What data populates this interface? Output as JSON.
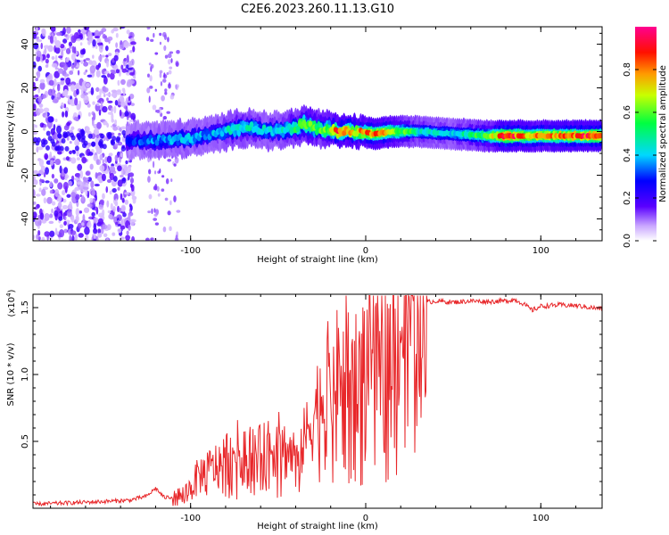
{
  "title": "C2E6.2023.260.11.13.G10",
  "chart_data": [
    {
      "type": "heatmap",
      "xlabel": "Height of straight line (km)",
      "ylabel": "Frequency (Hz)",
      "xlim": [
        -190,
        135
      ],
      "ylim": [
        -50,
        48
      ],
      "x_ticks": [
        -100,
        0,
        100
      ],
      "x_tick_labels": [
        "-100",
        "0",
        "100"
      ],
      "y_ticks": [
        40,
        20,
        0,
        -20,
        -40
      ],
      "y_tick_labels": [
        "40",
        "20",
        "0",
        "-20",
        "-40"
      ],
      "colorbar": {
        "label": "Normalized spectral amplitude",
        "range": [
          0,
          1
        ],
        "ticks": [
          0.0,
          0.2,
          0.4,
          0.6,
          0.8
        ],
        "tick_labels": [
          "0.0",
          "0.2",
          "0.4",
          "0.6",
          "0.8"
        ],
        "colormap": [
          "#ffffff",
          "#9b59ff",
          "#3a00ff",
          "#0000ff",
          "#00ffff",
          "#00ff00",
          "#ffff00",
          "#ff8000",
          "#ff0000",
          "#ff00a0"
        ]
      },
      "ridge": [
        {
          "x": -135,
          "y": -4,
          "amp": 0.3
        },
        {
          "x": -120,
          "y": -4,
          "amp": 0.35
        },
        {
          "x": -100,
          "y": -3,
          "amp": 0.4
        },
        {
          "x": -90,
          "y": -2,
          "amp": 0.35
        },
        {
          "x": -75,
          "y": 1,
          "amp": 0.45
        },
        {
          "x": -65,
          "y": 2,
          "amp": 0.45
        },
        {
          "x": -55,
          "y": 0,
          "amp": 0.4
        },
        {
          "x": -45,
          "y": 1,
          "amp": 0.45
        },
        {
          "x": -35,
          "y": 3,
          "amp": 0.65
        },
        {
          "x": -25,
          "y": 1,
          "amp": 0.55
        },
        {
          "x": -15,
          "y": 0,
          "amp": 0.85
        },
        {
          "x": -5,
          "y": 0,
          "amp": 0.75
        },
        {
          "x": 5,
          "y": -1,
          "amp": 0.8
        },
        {
          "x": 15,
          "y": 0,
          "amp": 0.7
        },
        {
          "x": 30,
          "y": 0,
          "amp": 0.45
        },
        {
          "x": 50,
          "y": -1,
          "amp": 0.4
        },
        {
          "x": 70,
          "y": -2,
          "amp": 0.6
        },
        {
          "x": 80,
          "y": -2,
          "amp": 0.9
        },
        {
          "x": 95,
          "y": -2,
          "amp": 0.75
        },
        {
          "x": 110,
          "y": -2,
          "amp": 0.8
        },
        {
          "x": 125,
          "y": -2,
          "amp": 0.85
        }
      ]
    },
    {
      "type": "line",
      "xlabel": "Height of straight line (km)",
      "ylabel": "SNR (10 * v/v)",
      "y_scale_label": "(x10",
      "y_scale_exponent": "4",
      "y_scale_suffix": ")",
      "xlim": [
        -190,
        135
      ],
      "ylim": [
        0,
        16000
      ],
      "x_ticks": [
        -100,
        0,
        100
      ],
      "x_tick_labels": [
        "-100",
        "0",
        "100"
      ],
      "y_ticks": [
        5000,
        10000,
        15000
      ],
      "y_tick_labels": [
        "0.5",
        "1.0",
        "1.5"
      ],
      "series": [
        {
          "color": "#e8272a",
          "x": [
            -190,
            -170,
            -150,
            -135,
            -125,
            -120,
            -115,
            -105,
            -100,
            -95,
            -90,
            -85,
            -80,
            -75,
            -70,
            -65,
            -60,
            -55,
            -50,
            -45,
            -40,
            -35,
            -30,
            -25,
            -20,
            -15,
            -10,
            -5,
            0,
            5,
            10,
            15,
            20,
            25,
            30,
            35,
            40,
            50,
            60,
            70,
            80,
            85,
            90,
            95,
            100,
            110,
            120,
            135
          ],
          "y": [
            300,
            400,
            500,
            600,
            900,
            1500,
            800,
            900,
            1500,
            2500,
            2800,
            3200,
            3800,
            4200,
            4500,
            4300,
            4000,
            4500,
            4800,
            4200,
            4000,
            5000,
            7000,
            8500,
            9800,
            10200,
            11000,
            10500,
            11200,
            12500,
            13000,
            12000,
            13500,
            14500,
            15200,
            15400,
            15500,
            15400,
            15500,
            15450,
            15500,
            15600,
            15300,
            14800,
            15100,
            15200,
            15150,
            14900
          ]
        }
      ]
    }
  ]
}
